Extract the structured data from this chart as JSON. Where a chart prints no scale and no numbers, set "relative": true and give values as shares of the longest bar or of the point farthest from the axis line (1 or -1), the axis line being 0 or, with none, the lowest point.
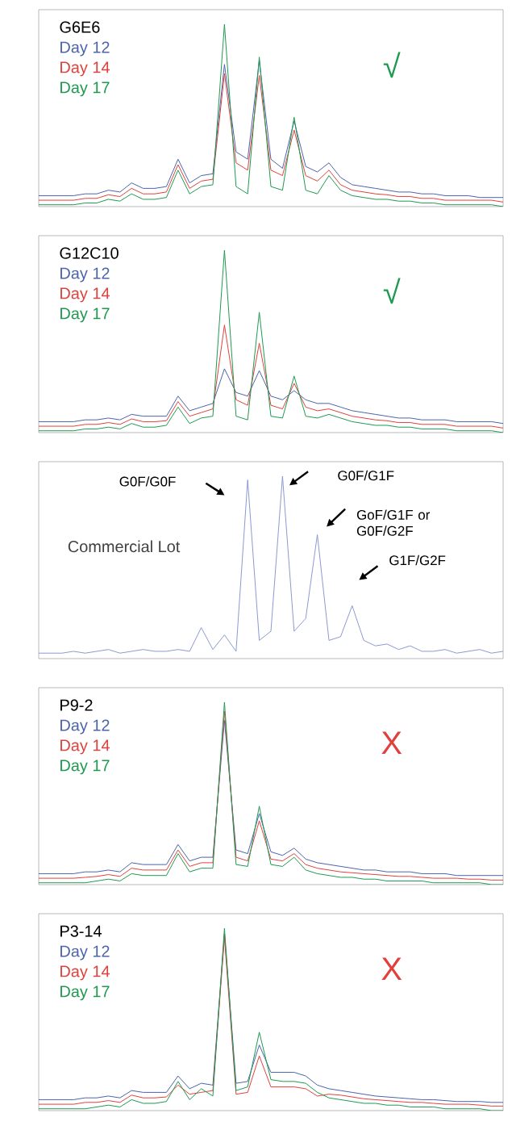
{
  "chart_data": [
    {
      "type": "line",
      "relative": true,
      "title": "G6E6",
      "annotations": [
        "√"
      ],
      "legend": "top left",
      "line_style": "solid",
      "categories": [
        null,
        null,
        null,
        null,
        null,
        null,
        null,
        null,
        null,
        null,
        null,
        null,
        null,
        null,
        null,
        null,
        null,
        null,
        null,
        null,
        null,
        null,
        null,
        null,
        null,
        null,
        null,
        null,
        null,
        null,
        null,
        null,
        null,
        null,
        null,
        null,
        null,
        null,
        null,
        null,
        null
      ],
      "series": [
        {
          "name": "Day 12",
          "color": "#4a64ad",
          "values": [
            0.06,
            0.06,
            0.06,
            0.06,
            0.07,
            0.07,
            0.09,
            0.08,
            0.13,
            0.1,
            0.1,
            0.11,
            0.26,
            0.13,
            0.17,
            0.18,
            0.78,
            0.3,
            0.26,
            0.8,
            0.26,
            0.21,
            0.47,
            0.22,
            0.19,
            0.24,
            0.16,
            0.12,
            0.11,
            0.1,
            0.09,
            0.08,
            0.08,
            0.07,
            0.07,
            0.06,
            0.06,
            0.06,
            0.05,
            0.05,
            0.05
          ]
        },
        {
          "name": "Day 14",
          "color": "#e0413c",
          "values": [
            0.035,
            0.035,
            0.035,
            0.035,
            0.045,
            0.045,
            0.065,
            0.055,
            0.1,
            0.07,
            0.07,
            0.08,
            0.23,
            0.1,
            0.14,
            0.15,
            0.73,
            0.24,
            0.2,
            0.72,
            0.2,
            0.17,
            0.42,
            0.17,
            0.14,
            0.2,
            0.12,
            0.09,
            0.08,
            0.07,
            0.065,
            0.055,
            0.055,
            0.045,
            0.045,
            0.035,
            0.035,
            0.035,
            0.035,
            0.035,
            0.025
          ]
        },
        {
          "name": "Day 17",
          "color": "#1e9a4f",
          "values": [
            0.01,
            0.01,
            0.01,
            0.01,
            0.02,
            0.02,
            0.04,
            0.03,
            0.07,
            0.04,
            0.04,
            0.05,
            0.2,
            0.07,
            0.11,
            0.12,
            1.0,
            0.11,
            0.07,
            0.82,
            0.11,
            0.09,
            0.49,
            0.09,
            0.07,
            0.17,
            0.09,
            0.06,
            0.05,
            0.04,
            0.04,
            0.03,
            0.03,
            0.02,
            0.02,
            0.01,
            0.01,
            0.01,
            0.01,
            0.01,
            0.0
          ]
        }
      ]
    },
    {
      "type": "line",
      "relative": true,
      "title": "G12C10",
      "annotations": [
        "√"
      ],
      "legend": "top left",
      "line_style": "solid",
      "categories": [
        null,
        null,
        null,
        null,
        null,
        null,
        null,
        null,
        null,
        null,
        null,
        null,
        null,
        null,
        null,
        null,
        null,
        null,
        null,
        null,
        null,
        null,
        null,
        null,
        null,
        null,
        null,
        null,
        null,
        null,
        null,
        null,
        null,
        null,
        null,
        null,
        null,
        null,
        null,
        null,
        null
      ],
      "series": [
        {
          "name": "Day 12",
          "color": "#4a64ad",
          "values": [
            0.06,
            0.06,
            0.06,
            0.06,
            0.07,
            0.07,
            0.08,
            0.07,
            0.1,
            0.09,
            0.09,
            0.09,
            0.2,
            0.12,
            0.14,
            0.16,
            0.35,
            0.22,
            0.2,
            0.34,
            0.2,
            0.18,
            0.23,
            0.18,
            0.16,
            0.16,
            0.14,
            0.12,
            0.11,
            0.1,
            0.09,
            0.08,
            0.08,
            0.07,
            0.07,
            0.07,
            0.06,
            0.06,
            0.06,
            0.06,
            0.05
          ]
        },
        {
          "name": "Day 14",
          "color": "#e0413c",
          "values": [
            0.035,
            0.035,
            0.035,
            0.035,
            0.045,
            0.045,
            0.055,
            0.045,
            0.075,
            0.06,
            0.06,
            0.065,
            0.17,
            0.09,
            0.11,
            0.13,
            0.59,
            0.18,
            0.15,
            0.49,
            0.15,
            0.13,
            0.27,
            0.14,
            0.12,
            0.13,
            0.11,
            0.09,
            0.08,
            0.07,
            0.065,
            0.055,
            0.055,
            0.045,
            0.045,
            0.045,
            0.035,
            0.035,
            0.035,
            0.035,
            0.025
          ]
        },
        {
          "name": "Day 17",
          "color": "#1e9a4f",
          "values": [
            0.01,
            0.01,
            0.01,
            0.01,
            0.02,
            0.02,
            0.03,
            0.02,
            0.05,
            0.03,
            0.03,
            0.04,
            0.14,
            0.05,
            0.08,
            0.09,
            1.0,
            0.09,
            0.07,
            0.66,
            0.09,
            0.08,
            0.31,
            0.09,
            0.08,
            0.1,
            0.08,
            0.06,
            0.05,
            0.04,
            0.04,
            0.03,
            0.03,
            0.02,
            0.02,
            0.02,
            0.01,
            0.01,
            0.01,
            0.01,
            0.0
          ]
        }
      ]
    },
    {
      "type": "line",
      "relative": true,
      "title": "Commercial Lot",
      "annotations": [
        "G0F/G0F",
        "G0F/G1F",
        "GoF/G1F or G0F/G2F",
        "G1F/G2F"
      ],
      "line_style": "solid",
      "categories": [
        null,
        null,
        null,
        null,
        null,
        null,
        null,
        null,
        null,
        null,
        null,
        null,
        null,
        null,
        null,
        null,
        null,
        null,
        null,
        null,
        null,
        null,
        null,
        null,
        null,
        null,
        null,
        null,
        null,
        null,
        null,
        null,
        null,
        null,
        null,
        null,
        null,
        null,
        null,
        null,
        null
      ],
      "series": [
        {
          "color": "#8a9ad0",
          "values": [
            0.03,
            0.03,
            0.03,
            0.04,
            0.03,
            0.04,
            0.05,
            0.03,
            0.04,
            0.05,
            0.04,
            0.04,
            0.05,
            0.04,
            0.17,
            0.05,
            0.13,
            0.04,
            0.98,
            0.1,
            0.15,
            1.0,
            0.15,
            0.22,
            0.68,
            0.1,
            0.12,
            0.29,
            0.1,
            0.07,
            0.08,
            0.05,
            0.07,
            0.04,
            0.04,
            0.05,
            0.03,
            0.04,
            0.05,
            0.03,
            0.04
          ]
        }
      ]
    },
    {
      "type": "line",
      "relative": true,
      "title": "P9-2",
      "annotations": [
        "X"
      ],
      "legend": "top left",
      "line_style": "solid",
      "categories": [
        null,
        null,
        null,
        null,
        null,
        null,
        null,
        null,
        null,
        null,
        null,
        null,
        null,
        null,
        null,
        null,
        null,
        null,
        null,
        null,
        null,
        null,
        null,
        null,
        null,
        null,
        null,
        null,
        null,
        null,
        null,
        null,
        null,
        null,
        null,
        null,
        null,
        null,
        null,
        null,
        null
      ],
      "series": [
        {
          "name": "Day 12",
          "color": "#4a64ad",
          "values": [
            0.06,
            0.06,
            0.06,
            0.06,
            0.07,
            0.07,
            0.08,
            0.07,
            0.12,
            0.11,
            0.11,
            0.11,
            0.22,
            0.13,
            0.15,
            0.15,
            0.9,
            0.19,
            0.17,
            0.39,
            0.18,
            0.16,
            0.2,
            0.14,
            0.12,
            0.11,
            0.1,
            0.09,
            0.08,
            0.08,
            0.07,
            0.07,
            0.07,
            0.06,
            0.06,
            0.06,
            0.05,
            0.05,
            0.05,
            0.05,
            0.05
          ]
        },
        {
          "name": "Day 14",
          "color": "#e0413c",
          "values": [
            0.035,
            0.035,
            0.035,
            0.035,
            0.04,
            0.045,
            0.055,
            0.045,
            0.09,
            0.08,
            0.08,
            0.08,
            0.19,
            0.1,
            0.12,
            0.12,
            0.95,
            0.15,
            0.13,
            0.35,
            0.14,
            0.13,
            0.17,
            0.11,
            0.09,
            0.08,
            0.07,
            0.065,
            0.06,
            0.055,
            0.05,
            0.045,
            0.045,
            0.04,
            0.035,
            0.035,
            0.035,
            0.03,
            0.03,
            0.025,
            0.025
          ]
        },
        {
          "name": "Day 17",
          "color": "#1e9a4f",
          "values": [
            0.01,
            0.01,
            0.01,
            0.01,
            0.01,
            0.02,
            0.03,
            0.02,
            0.06,
            0.05,
            0.05,
            0.05,
            0.17,
            0.07,
            0.09,
            0.09,
            1.0,
            0.11,
            0.1,
            0.43,
            0.11,
            0.1,
            0.15,
            0.08,
            0.06,
            0.05,
            0.04,
            0.04,
            0.03,
            0.03,
            0.02,
            0.02,
            0.02,
            0.02,
            0.01,
            0.01,
            0.01,
            0.01,
            0.01,
            0.0,
            0.0
          ]
        }
      ]
    },
    {
      "type": "line",
      "relative": true,
      "title": "P3-14",
      "annotations": [
        "X"
      ],
      "legend": "top left",
      "line_style": "solid",
      "categories": [
        null,
        null,
        null,
        null,
        null,
        null,
        null,
        null,
        null,
        null,
        null,
        null,
        null,
        null,
        null,
        null,
        null,
        null,
        null,
        null,
        null,
        null,
        null,
        null,
        null,
        null,
        null,
        null,
        null,
        null,
        null,
        null,
        null,
        null,
        null,
        null,
        null,
        null,
        null,
        null,
        null
      ],
      "series": [
        {
          "name": "Day 12",
          "color": "#4a64ad",
          "values": [
            0.06,
            0.06,
            0.06,
            0.06,
            0.07,
            0.07,
            0.08,
            0.07,
            0.11,
            0.1,
            0.1,
            0.1,
            0.19,
            0.12,
            0.15,
            0.14,
            0.97,
            0.15,
            0.16,
            0.36,
            0.21,
            0.21,
            0.21,
            0.19,
            0.14,
            0.12,
            0.11,
            0.1,
            0.09,
            0.08,
            0.075,
            0.07,
            0.065,
            0.06,
            0.06,
            0.055,
            0.05,
            0.05,
            0.05,
            0.045,
            0.045
          ]
        },
        {
          "name": "Day 14",
          "color": "#e0413c",
          "values": [
            0.035,
            0.035,
            0.035,
            0.035,
            0.045,
            0.045,
            0.055,
            0.045,
            0.085,
            0.07,
            0.07,
            0.075,
            0.14,
            0.09,
            0.1,
            0.11,
            0.95,
            0.09,
            0.1,
            0.3,
            0.13,
            0.13,
            0.13,
            0.12,
            0.08,
            0.09,
            0.085,
            0.075,
            0.065,
            0.06,
            0.055,
            0.05,
            0.045,
            0.045,
            0.04,
            0.035,
            0.035,
            0.035,
            0.03,
            0.025,
            0.025
          ]
        },
        {
          "name": "Day 17",
          "color": "#1e9a4f",
          "values": [
            0.01,
            0.01,
            0.01,
            0.01,
            0.01,
            0.02,
            0.03,
            0.02,
            0.06,
            0.04,
            0.04,
            0.05,
            0.16,
            0.06,
            0.12,
            0.08,
            1.0,
            0.11,
            0.13,
            0.43,
            0.17,
            0.16,
            0.16,
            0.15,
            0.1,
            0.07,
            0.06,
            0.05,
            0.04,
            0.04,
            0.03,
            0.03,
            0.02,
            0.02,
            0.02,
            0.01,
            0.01,
            0.01,
            0.01,
            0.0,
            0.0
          ]
        }
      ]
    }
  ]
}
